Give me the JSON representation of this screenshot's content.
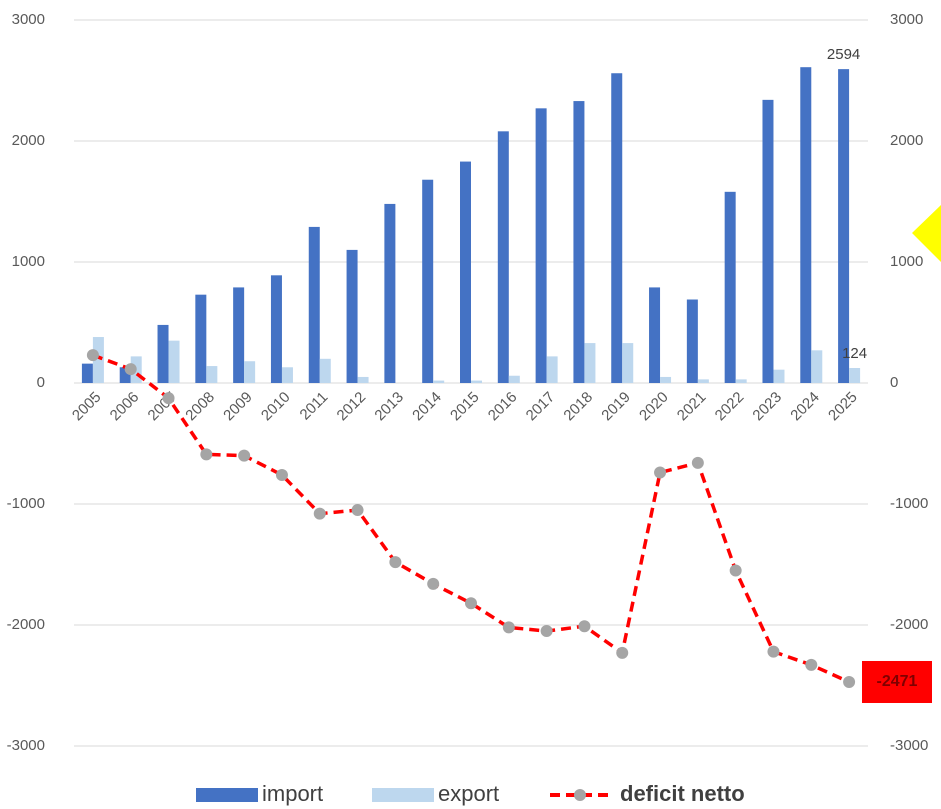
{
  "chart_data": {
    "type": "bar",
    "categories": [
      "2005",
      "2006",
      "2007",
      "2008",
      "2009",
      "2010",
      "2011",
      "2012",
      "2013",
      "2014",
      "2015",
      "2016",
      "2017",
      "2018",
      "2019",
      "2020",
      "2021",
      "2022",
      "2023",
      "2024",
      "2025"
    ],
    "series": [
      {
        "name": "import",
        "type": "bar",
        "color": "#4472c4",
        "data_label": "last",
        "values": [
          160,
          130,
          480,
          730,
          790,
          890,
          1290,
          1100,
          1480,
          1680,
          1830,
          2080,
          2270,
          2330,
          2560,
          790,
          690,
          1580,
          2340,
          2610,
          2594
        ]
      },
      {
        "name": "export",
        "type": "bar",
        "color": "#bdd7ee",
        "data_label": "last",
        "values": [
          380,
          220,
          350,
          140,
          180,
          130,
          200,
          50,
          0,
          20,
          20,
          60,
          220,
          330,
          330,
          50,
          30,
          30,
          110,
          270,
          124
        ]
      },
      {
        "name": "deficit netto",
        "type": "line",
        "axis": "y2",
        "color": "#ff0000",
        "marker_color": "#a5a5a5",
        "dashed": true,
        "data_label": "last",
        "values": [
          230,
          115,
          -125,
          -590,
          -600,
          -760,
          -1080,
          -1050,
          -1480,
          -1660,
          -1820,
          -2020,
          -2050,
          -2010,
          -2230,
          -740,
          -660,
          -1550,
          -2220,
          -2330,
          -2471
        ]
      }
    ],
    "ylim": [
      -3000,
      3000
    ],
    "yticks": [
      -3000,
      -2000,
      -1000,
      0,
      1000,
      2000,
      3000
    ],
    "y2lim": [
      -3000,
      3000
    ],
    "y2ticks": [
      -3000,
      -2000,
      -1000,
      0,
      1000,
      2000,
      3000
    ],
    "grid": true,
    "legend": "bottom"
  }
}
